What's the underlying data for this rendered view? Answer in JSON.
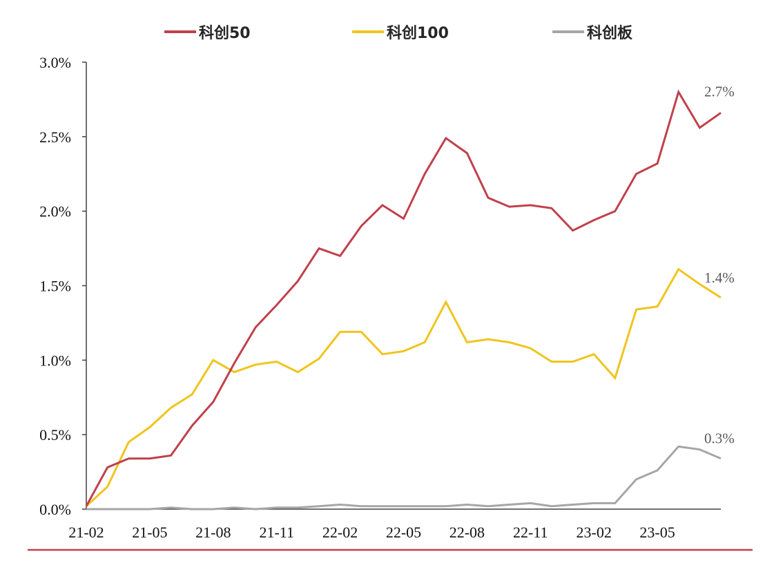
{
  "chart_data": {
    "type": "line",
    "title": "",
    "xlabel": "",
    "ylabel": "",
    "ylim": [
      0,
      3.0
    ],
    "y_ticks": [
      "0.0%",
      "0.5%",
      "1.0%",
      "1.5%",
      "2.0%",
      "2.5%",
      "3.0%"
    ],
    "y_tick_values": [
      0,
      0.5,
      1.0,
      1.5,
      2.0,
      2.5,
      3.0
    ],
    "x_tick_labels": [
      "21-02",
      "21-05",
      "21-08",
      "21-11",
      "22-02",
      "22-05",
      "22-08",
      "22-11",
      "23-02",
      "23-05"
    ],
    "x": [
      "21-02",
      "21-03",
      "21-04",
      "21-05",
      "21-06",
      "21-07",
      "21-08",
      "21-09",
      "21-10",
      "21-11",
      "21-12",
      "22-01",
      "22-02",
      "22-03",
      "22-04",
      "22-05",
      "22-06",
      "22-07",
      "22-08",
      "22-09",
      "22-10",
      "22-11",
      "22-12",
      "23-01",
      "23-02",
      "23-03",
      "23-04",
      "23-05",
      "23-06",
      "23-07",
      "23-08"
    ],
    "grid": false,
    "legend_position": "top",
    "series": [
      {
        "name": "科创50",
        "color": "#c0404b",
        "end_label": "2.7%",
        "values": [
          0.02,
          0.28,
          0.34,
          0.34,
          0.36,
          0.56,
          0.72,
          0.98,
          1.22,
          1.37,
          1.53,
          1.75,
          1.7,
          1.9,
          2.04,
          1.95,
          2.25,
          2.49,
          2.39,
          2.09,
          2.03,
          2.04,
          2.02,
          1.87,
          1.94,
          2.0,
          2.25,
          2.32,
          2.8,
          2.56,
          2.66
        ]
      },
      {
        "name": "科创100",
        "color": "#f0c41d",
        "end_label": "1.4%",
        "values": [
          0.02,
          0.15,
          0.45,
          0.55,
          0.68,
          0.77,
          1.0,
          0.92,
          0.97,
          0.99,
          0.92,
          1.01,
          1.19,
          1.19,
          1.04,
          1.06,
          1.12,
          1.39,
          1.12,
          1.14,
          1.12,
          1.08,
          0.99,
          0.99,
          1.04,
          0.88,
          1.34,
          1.36,
          1.61,
          1.51,
          1.42
        ]
      },
      {
        "name": "科创板",
        "color": "#a6a6a6",
        "end_label": "0.3%",
        "values": [
          0.0,
          0.0,
          0.0,
          0.0,
          0.01,
          0.0,
          0.0,
          0.01,
          0.0,
          0.01,
          0.01,
          0.02,
          0.03,
          0.02,
          0.02,
          0.02,
          0.02,
          0.02,
          0.03,
          0.02,
          0.03,
          0.04,
          0.02,
          0.03,
          0.04,
          0.04,
          0.2,
          0.26,
          0.42,
          0.4,
          0.34
        ]
      }
    ]
  }
}
